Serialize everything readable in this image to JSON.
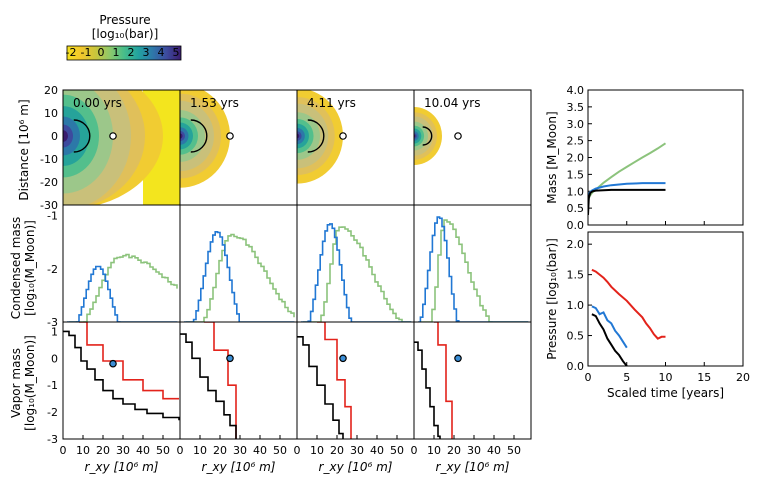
{
  "colorbar": {
    "title_line1": "Pressure",
    "title_line2": "[log₁₀(bar)]",
    "ticks": [
      "-2",
      "-1",
      "0",
      "1",
      "2",
      "3",
      "4",
      "5"
    ],
    "colors": [
      "#f5e21f",
      "#f2c62c",
      "#c9c53c",
      "#8ec86a",
      "#47bd8a",
      "#22a29f",
      "#2e78a9",
      "#3d4a9e",
      "#3a1c6e"
    ]
  },
  "timesteps": [
    "0.00 yrs",
    "1.53 yrs",
    "4.11 yrs",
    "10.04 yrs"
  ],
  "colors": {
    "green": "#8cc37c",
    "blue": "#2278d4",
    "red": "#e3231b",
    "black": "#000000"
  },
  "row_labels": {
    "distance": "Distance [10⁶ m]",
    "condensed_line1": "Condensed mass",
    "condensed_line2": "[log₁₀(M_Moon)]",
    "vapor_line1": "Vapor mass",
    "vapor_line2": "[log₁₀(M_Moon)]"
  },
  "xlabel_grid": "r_xy [10⁶ m]",
  "grid_axes": {
    "x_ticks": [
      "0",
      "10",
      "20",
      "30",
      "40",
      "50"
    ],
    "distance_ticks": [
      "20",
      "10",
      "0",
      "-10",
      "-20",
      "-30"
    ],
    "condensed_ticks": [
      "-1",
      "-2",
      "-3"
    ],
    "vapor_ticks": [
      "1",
      "0",
      "-1",
      "-2",
      "-3"
    ]
  },
  "chart_data": [
    {
      "type": "line",
      "panel": "mass",
      "ylabel": "Mass [M_Moon]",
      "xlim": [
        0,
        20
      ],
      "ylim": [
        0,
        4
      ],
      "y_ticks": [
        "4.0",
        "3.5",
        "3.0",
        "2.5",
        "2.0",
        "1.5",
        "1.0",
        "0.5",
        "0.0"
      ],
      "series": [
        {
          "name": "green",
          "x": [
            0,
            0.2,
            0.5,
            1,
            2,
            3,
            4,
            5,
            6,
            7,
            8,
            9,
            10
          ],
          "y": [
            0.7,
            0.85,
            0.95,
            1.05,
            1.25,
            1.42,
            1.58,
            1.72,
            1.86,
            2.0,
            2.13,
            2.27,
            2.42
          ]
        },
        {
          "name": "blue",
          "x": [
            0,
            0.2,
            0.5,
            1,
            2,
            3,
            4,
            5,
            6,
            7,
            8,
            9,
            10
          ],
          "y": [
            0.8,
            0.95,
            1.02,
            1.08,
            1.14,
            1.18,
            1.2,
            1.22,
            1.23,
            1.24,
            1.24,
            1.24,
            1.24
          ]
        },
        {
          "name": "black",
          "x": [
            0,
            0.1,
            0.3,
            0.6,
            1,
            2,
            3,
            5,
            7,
            10
          ],
          "y": [
            0.3,
            0.8,
            0.95,
            1.0,
            1.02,
            1.03,
            1.04,
            1.04,
            1.04,
            1.04
          ]
        }
      ]
    },
    {
      "type": "line",
      "panel": "pressure",
      "ylabel": "Pressure [log₁₀(bar)]",
      "xlabel": "Scaled time [years]",
      "xlim": [
        0,
        20
      ],
      "ylim": [
        0,
        2.2
      ],
      "x_ticks": [
        "0",
        "5",
        "10",
        "15",
        "20"
      ],
      "y_ticks": [
        "2.0",
        "1.5",
        "1.0",
        "0.5",
        "0.0"
      ],
      "series": [
        {
          "name": "red",
          "x": [
            0.5,
            1,
            1.5,
            2,
            2.5,
            3,
            4,
            5,
            6,
            7,
            7.5,
            8,
            8.5,
            9,
            9.5,
            10
          ],
          "y": [
            1.58,
            1.55,
            1.5,
            1.45,
            1.38,
            1.3,
            1.18,
            1.07,
            0.93,
            0.8,
            0.7,
            0.62,
            0.52,
            0.45,
            0.48,
            0.48
          ]
        },
        {
          "name": "blue",
          "x": [
            0.5,
            1,
            1.5,
            2,
            2.5,
            3,
            3.5,
            4,
            4.5,
            5
          ],
          "y": [
            0.98,
            0.95,
            0.85,
            0.88,
            0.75,
            0.7,
            0.58,
            0.5,
            0.4,
            0.3
          ]
        },
        {
          "name": "black",
          "x": [
            0.5,
            1,
            1.5,
            2,
            2.5,
            3,
            3.5,
            4,
            4.5,
            5
          ],
          "y": [
            0.85,
            0.82,
            0.7,
            0.6,
            0.45,
            0.35,
            0.25,
            0.18,
            0.08,
            0.0
          ]
        }
      ]
    }
  ]
}
